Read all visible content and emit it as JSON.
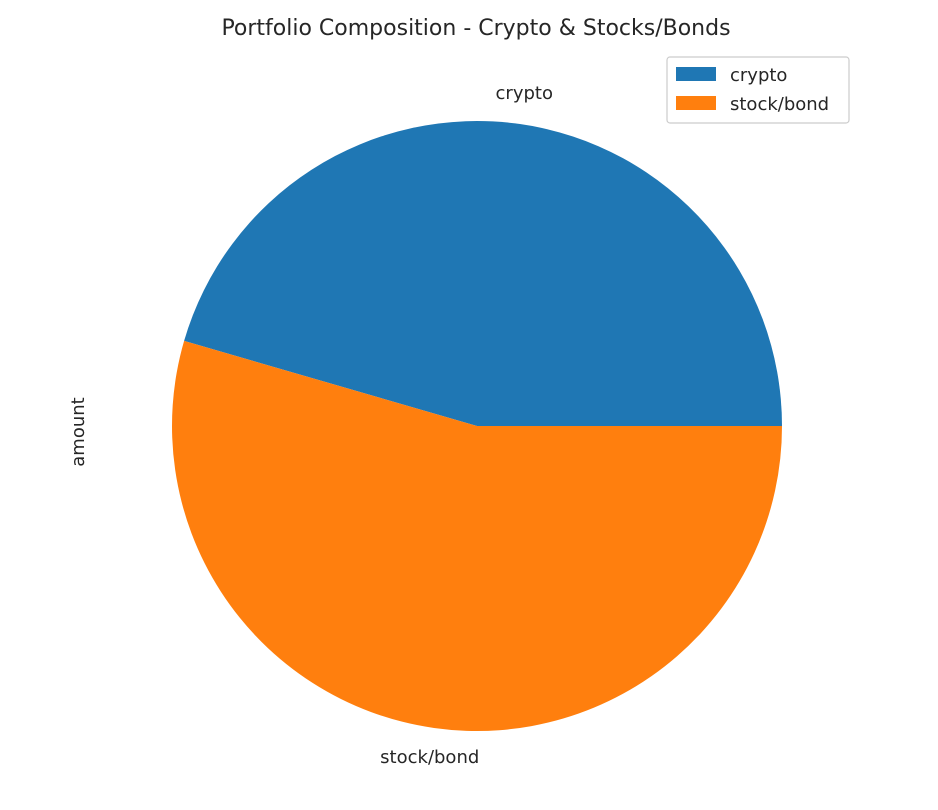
{
  "chart_data": {
    "type": "pie",
    "title": "Portfolio Composition - Crypto & Stocks/Bonds",
    "ylabel": "amount",
    "legend": "top-right",
    "slices": [
      {
        "label": "crypto",
        "value": 45.5,
        "color": "#1f77b4"
      },
      {
        "label": "stock/bond",
        "value": 54.5,
        "color": "#ff7f0e"
      }
    ],
    "legend_entries": [
      "crypto",
      "stock/bond"
    ]
  }
}
